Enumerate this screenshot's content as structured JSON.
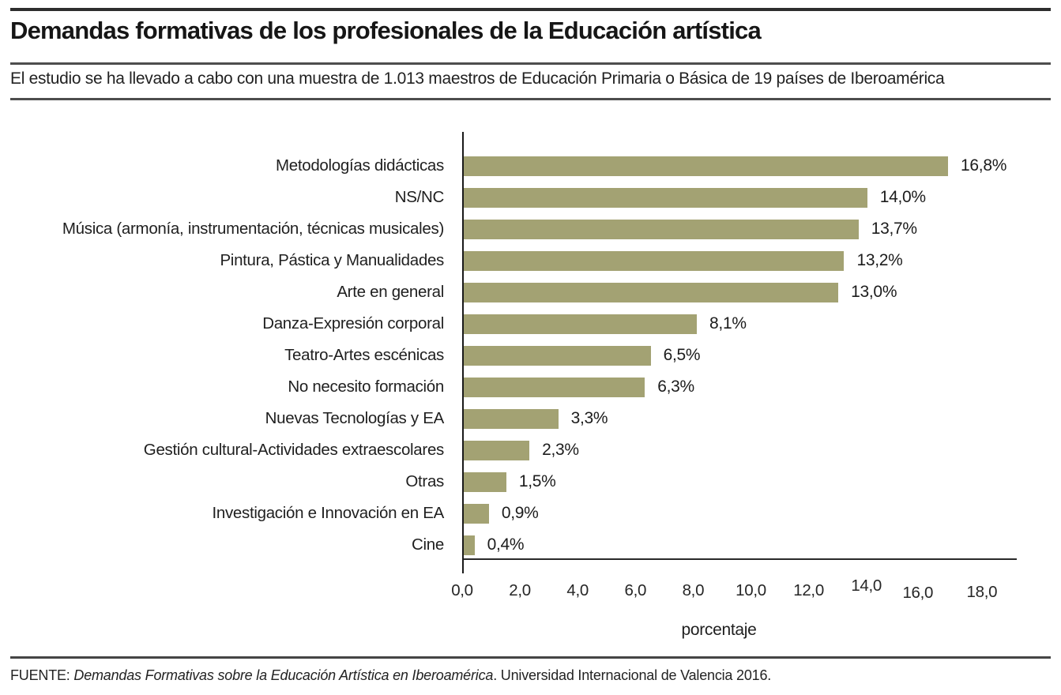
{
  "header": {
    "title": "Demandas formativas de los profesionales de la Educación artística",
    "subtitle": "El estudio se ha llevado a cabo con una muestra de 1.013 maestros de Educación Primaria o Básica de 19 países de Iberoamérica"
  },
  "chart_data": {
    "type": "bar",
    "orientation": "horizontal",
    "categories": [
      "Metodologías didácticas",
      "NS/NC",
      "Música (armonía, instrumentación, técnicas musicales)",
      "Pintura, Pástica y Manualidades",
      "Arte en general",
      "Danza-Expresión corporal",
      "Teatro-Artes escénicas",
      "No necesito formación",
      "Nuevas Tecnologías y EA",
      "Gestión cultural-Actividades extraescolares",
      "Otras",
      "Investigación e Innovación en EA",
      "Cine"
    ],
    "values": [
      16.8,
      14.0,
      13.7,
      13.2,
      13.0,
      8.1,
      6.5,
      6.3,
      3.3,
      2.3,
      1.5,
      0.9,
      0.4
    ],
    "value_labels": [
      "16,8%",
      "14,0%",
      "13,7%",
      "13,2%",
      "13,0%",
      "8,1%",
      "6,5%",
      "6,3%",
      "3,3%",
      "2,3%",
      "1,5%",
      "0,9%",
      "0,4%"
    ],
    "xlabel": "porcentaje",
    "xlim": [
      0,
      18
    ],
    "x_ticks": [
      0,
      2,
      4,
      6,
      8,
      10,
      12,
      14,
      16,
      18
    ],
    "x_tick_labels": [
      "0,0",
      "2,0",
      "4,0",
      "6,0",
      "8,0",
      "10,0",
      "12,0",
      "14,0",
      "16,0",
      "18,0"
    ],
    "grid": "off",
    "legend": "none",
    "bar_color": "#a3a273"
  },
  "footer": {
    "source_prefix": "FUENTE: ",
    "source_title": "Demandas Formativas sobre la Educación Artística en Iberoamérica",
    "source_suffix": ". Universidad Internacional de Valencia 2016."
  }
}
